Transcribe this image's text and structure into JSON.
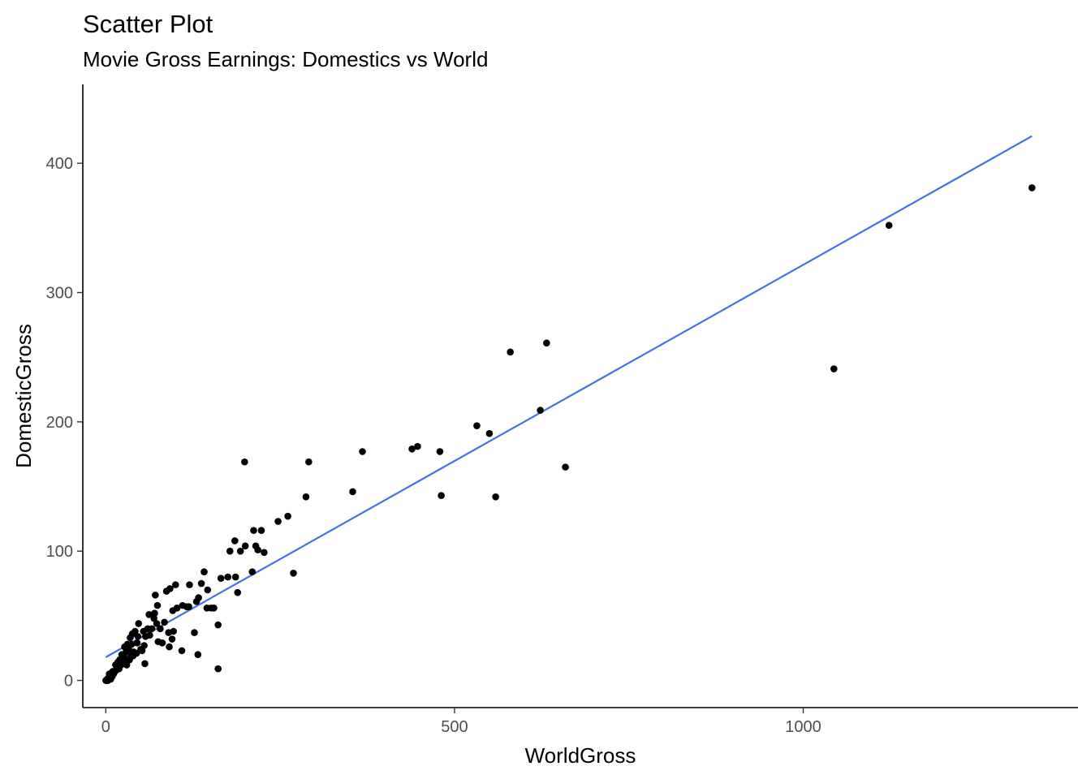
{
  "chart_data": {
    "type": "scatter",
    "title": "Scatter Plot",
    "subtitle": "Movie Gross Earnings: Domestics vs World",
    "xlabel": "WorldGross",
    "ylabel": "DomesticGross",
    "xlim": [
      -33,
      1394
    ],
    "ylim": [
      -21,
      461
    ],
    "xticks": [
      0,
      500,
      1000
    ],
    "yticks": [
      0,
      100,
      200,
      300,
      400
    ],
    "grid": false,
    "points": [
      [
        1328,
        381
      ],
      [
        1123,
        352
      ],
      [
        1044,
        241
      ],
      [
        632,
        261
      ],
      [
        580,
        254
      ],
      [
        623,
        209
      ],
      [
        659,
        165
      ],
      [
        532,
        197
      ],
      [
        550,
        191
      ],
      [
        559,
        142
      ],
      [
        479,
        177
      ],
      [
        481,
        143
      ],
      [
        447,
        181
      ],
      [
        439,
        179
      ],
      [
        368,
        177
      ],
      [
        354,
        146
      ],
      [
        291,
        169
      ],
      [
        287,
        142
      ],
      [
        269,
        83
      ],
      [
        261,
        127
      ],
      [
        247,
        123
      ],
      [
        227,
        99
      ],
      [
        223,
        116
      ],
      [
        218,
        101
      ],
      [
        215,
        104
      ],
      [
        212,
        116
      ],
      [
        210,
        84
      ],
      [
        200,
        104
      ],
      [
        199,
        169
      ],
      [
        193,
        100
      ],
      [
        185,
        108
      ],
      [
        186,
        80
      ],
      [
        189,
        68
      ],
      [
        178,
        100
      ],
      [
        175,
        80
      ],
      [
        165,
        79
      ],
      [
        161,
        43
      ],
      [
        161,
        9
      ],
      [
        155,
        56
      ],
      [
        151,
        56
      ],
      [
        146,
        70
      ],
      [
        141,
        84
      ],
      [
        145,
        56
      ],
      [
        137,
        75
      ],
      [
        133,
        64
      ],
      [
        130,
        61
      ],
      [
        132,
        20
      ],
      [
        127,
        37
      ],
      [
        120,
        74
      ],
      [
        119,
        57
      ],
      [
        116,
        57
      ],
      [
        110,
        58
      ],
      [
        109,
        23
      ],
      [
        102,
        56
      ],
      [
        100,
        74
      ],
      [
        97,
        38
      ],
      [
        95,
        32
      ],
      [
        96,
        54
      ],
      [
        92,
        71
      ],
      [
        91,
        26
      ],
      [
        90,
        37
      ],
      [
        87,
        69
      ],
      [
        84,
        45
      ],
      [
        81,
        29
      ],
      [
        78,
        40
      ],
      [
        75,
        30
      ],
      [
        73,
        44
      ],
      [
        74,
        58
      ],
      [
        71,
        66
      ],
      [
        70,
        52
      ],
      [
        69,
        48
      ],
      [
        66,
        40
      ],
      [
        63,
        35
      ],
      [
        62,
        51
      ],
      [
        60,
        40
      ],
      [
        57,
        34
      ],
      [
        56,
        13
      ],
      [
        55,
        27
      ],
      [
        54,
        38
      ],
      [
        52,
        23
      ],
      [
        50,
        24
      ],
      [
        47,
        44
      ],
      [
        46,
        34
      ],
      [
        45,
        29
      ],
      [
        44,
        21
      ],
      [
        42,
        38
      ],
      [
        40,
        22
      ],
      [
        39,
        19
      ],
      [
        38,
        36
      ],
      [
        37,
        28
      ],
      [
        36,
        19
      ],
      [
        35,
        33
      ],
      [
        34,
        16
      ],
      [
        33,
        24
      ],
      [
        31,
        28
      ],
      [
        30,
        12
      ],
      [
        29,
        22
      ],
      [
        28,
        15
      ],
      [
        27,
        26
      ],
      [
        26,
        18
      ],
      [
        24,
        14
      ],
      [
        23,
        20
      ],
      [
        22,
        12
      ],
      [
        20,
        16
      ],
      [
        19,
        9
      ],
      [
        18,
        11
      ],
      [
        17,
        14
      ],
      [
        15,
        8
      ],
      [
        14,
        12
      ],
      [
        12,
        6
      ],
      [
        11,
        5
      ],
      [
        10,
        7
      ],
      [
        9,
        3
      ],
      [
        8,
        4
      ],
      [
        7,
        1
      ],
      [
        6,
        2
      ],
      [
        5,
        5
      ],
      [
        4,
        2
      ],
      [
        3,
        0
      ],
      [
        2,
        1
      ],
      [
        1,
        0
      ],
      [
        0,
        0
      ]
    ],
    "trend_line": {
      "x": [
        0,
        1328
      ],
      "y": [
        18,
        421
      ]
    },
    "colors": {
      "points": "#000000",
      "trend_line": "#4272e8",
      "axis": "#000000",
      "tick_label": "#4d4d4d"
    }
  }
}
